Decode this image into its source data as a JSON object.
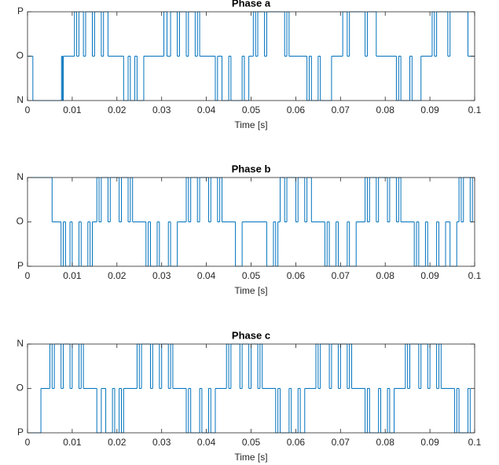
{
  "chart_data": [
    {
      "type": "line",
      "title": "Phase a",
      "xlabel": "Time [s]",
      "color": "#0072bd",
      "xlim": [
        0,
        0.1
      ],
      "xticks": [
        0,
        0.01,
        0.02,
        0.03,
        0.04,
        0.05,
        0.06,
        0.07,
        0.08,
        0.09,
        0.1
      ],
      "ylim": [
        -1,
        1
      ],
      "yticks": [
        {
          "value": -1,
          "label": "N"
        },
        {
          "value": 0,
          "label": "O"
        },
        {
          "value": 1,
          "label": "P"
        }
      ],
      "x": [
        0,
        0.0012,
        0.0076,
        0.0078,
        0.008,
        0.0105,
        0.011,
        0.0115,
        0.0125,
        0.013,
        0.0145,
        0.015,
        0.0165,
        0.017,
        0.018,
        0.0215,
        0.0225,
        0.023,
        0.024,
        0.0245,
        0.026,
        0.0305,
        0.0312,
        0.032,
        0.0335,
        0.034,
        0.0355,
        0.036,
        0.0375,
        0.038,
        0.0385,
        0.042,
        0.0425,
        0.0435,
        0.045,
        0.0455,
        0.048,
        0.0485,
        0.0495,
        0.0505,
        0.051,
        0.0515,
        0.053,
        0.0535,
        0.0575,
        0.058,
        0.0585,
        0.0625,
        0.063,
        0.0635,
        0.065,
        0.0655,
        0.068,
        0.0705,
        0.0715,
        0.072,
        0.0755,
        0.076,
        0.078,
        0.0825,
        0.083,
        0.0835,
        0.0855,
        0.086,
        0.088,
        0.0905,
        0.091,
        0.0915,
        0.094,
        0.0945,
        0.0985,
        0.1
      ],
      "values": [
        0,
        -1,
        0,
        -1,
        0,
        1,
        0,
        1,
        0,
        1,
        0,
        1,
        0,
        1,
        0,
        -1,
        0,
        -1,
        0,
        -1,
        0,
        1,
        0,
        1,
        0,
        1,
        0,
        1,
        0,
        1,
        0,
        -1,
        0,
        -1,
        0,
        -1,
        0,
        -1,
        0,
        1,
        0,
        1,
        0,
        1,
        0,
        1,
        0,
        -1,
        0,
        -1,
        0,
        -1,
        0,
        1,
        0,
        1,
        0,
        1,
        0,
        -1,
        0,
        -1,
        0,
        -1,
        0,
        1,
        0,
        1,
        0,
        1,
        0,
        0
      ]
    },
    {
      "type": "line",
      "title": "Phase b",
      "xlabel": "Time [s]",
      "color": "#0072bd",
      "xlim": [
        0,
        0.1
      ],
      "xticks": [
        0,
        0.01,
        0.02,
        0.03,
        0.04,
        0.05,
        0.06,
        0.07,
        0.08,
        0.09,
        0.1
      ],
      "ylim": [
        1,
        -1
      ],
      "yticks": [
        {
          "value": 1,
          "label": "P"
        },
        {
          "value": 0,
          "label": "O"
        },
        {
          "value": -1,
          "label": "N"
        }
      ],
      "x": [
        0,
        0.0055,
        0.0075,
        0.008,
        0.0085,
        0.0095,
        0.01,
        0.0115,
        0.012,
        0.0135,
        0.014,
        0.0145,
        0.0155,
        0.016,
        0.0165,
        0.018,
        0.0185,
        0.0205,
        0.021,
        0.0225,
        0.023,
        0.0235,
        0.0265,
        0.027,
        0.0275,
        0.029,
        0.0295,
        0.0315,
        0.032,
        0.0335,
        0.0355,
        0.036,
        0.0365,
        0.038,
        0.0385,
        0.0405,
        0.041,
        0.0425,
        0.043,
        0.0435,
        0.0465,
        0.048,
        0.0535,
        0.055,
        0.0555,
        0.056,
        0.0565,
        0.0575,
        0.058,
        0.06,
        0.0605,
        0.062,
        0.0625,
        0.0635,
        0.0665,
        0.067,
        0.0675,
        0.069,
        0.0695,
        0.0715,
        0.072,
        0.0735,
        0.0755,
        0.076,
        0.0765,
        0.078,
        0.0785,
        0.0805,
        0.081,
        0.0825,
        0.083,
        0.0835,
        0.0865,
        0.087,
        0.0875,
        0.089,
        0.0895,
        0.0915,
        0.092,
        0.0935,
        0.0945,
        0.096,
        0.0965,
        0.097,
        0.0975,
        0.099,
        0.0995,
        0.1
      ],
      "values": [
        -1,
        0,
        1,
        0,
        1,
        0,
        1,
        0,
        1,
        0,
        1,
        0,
        -1,
        0,
        -1,
        0,
        -1,
        0,
        -1,
        0,
        -1,
        0,
        1,
        0,
        1,
        0,
        1,
        0,
        1,
        0,
        -1,
        0,
        -1,
        0,
        -1,
        0,
        -1,
        0,
        -1,
        0,
        1,
        0,
        1,
        0,
        1,
        0,
        -1,
        0,
        -1,
        0,
        -1,
        0,
        -1,
        0,
        1,
        0,
        1,
        0,
        1,
        0,
        1,
        0,
        -1,
        0,
        -1,
        0,
        -1,
        0,
        -1,
        0,
        -1,
        0,
        1,
        0,
        1,
        0,
        1,
        0,
        1,
        0,
        1,
        0,
        -1,
        0,
        -1,
        0,
        -1,
        -1
      ]
    },
    {
      "type": "line",
      "title": "Phase c",
      "xlabel": "Time [s]",
      "color": "#0072bd",
      "xlim": [
        0,
        0.1
      ],
      "xticks": [
        0,
        0.01,
        0.02,
        0.03,
        0.04,
        0.05,
        0.06,
        0.07,
        0.08,
        0.09,
        0.1
      ],
      "ylim": [
        1,
        -1
      ],
      "yticks": [
        {
          "value": 1,
          "label": "P"
        },
        {
          "value": 0,
          "label": "O"
        },
        {
          "value": -1,
          "label": "N"
        }
      ],
      "x": [
        0,
        0.003,
        0.005,
        0.0055,
        0.006,
        0.0075,
        0.008,
        0.0095,
        0.01,
        0.0115,
        0.012,
        0.0125,
        0.0155,
        0.0165,
        0.0175,
        0.019,
        0.0195,
        0.0205,
        0.021,
        0.0215,
        0.0245,
        0.025,
        0.0255,
        0.0275,
        0.028,
        0.0295,
        0.03,
        0.0315,
        0.032,
        0.0325,
        0.0355,
        0.036,
        0.0365,
        0.0385,
        0.039,
        0.0405,
        0.041,
        0.042,
        0.0445,
        0.045,
        0.0455,
        0.0475,
        0.048,
        0.0495,
        0.05,
        0.0515,
        0.052,
        0.0525,
        0.0555,
        0.056,
        0.0565,
        0.0585,
        0.059,
        0.0605,
        0.061,
        0.062,
        0.0645,
        0.065,
        0.0655,
        0.0675,
        0.068,
        0.0695,
        0.07,
        0.0715,
        0.072,
        0.0725,
        0.0755,
        0.076,
        0.0765,
        0.0785,
        0.079,
        0.0805,
        0.081,
        0.082,
        0.0845,
        0.085,
        0.0855,
        0.0875,
        0.088,
        0.0895,
        0.09,
        0.0915,
        0.092,
        0.0925,
        0.0955,
        0.096,
        0.0965,
        0.0985,
        0.099,
        0.1
      ],
      "values": [
        1,
        0,
        -1,
        0,
        -1,
        0,
        -1,
        0,
        -1,
        0,
        -1,
        0,
        1,
        0,
        1,
        0,
        1,
        0,
        1,
        0,
        -1,
        0,
        -1,
        0,
        -1,
        0,
        -1,
        0,
        -1,
        0,
        1,
        0,
        1,
        0,
        1,
        0,
        1,
        0,
        -1,
        0,
        -1,
        0,
        -1,
        0,
        -1,
        0,
        -1,
        0,
        1,
        0,
        1,
        0,
        1,
        0,
        1,
        0,
        -1,
        0,
        -1,
        0,
        -1,
        0,
        -1,
        0,
        -1,
        0,
        1,
        0,
        1,
        0,
        1,
        0,
        1,
        0,
        -1,
        0,
        -1,
        0,
        -1,
        0,
        -1,
        0,
        -1,
        0,
        1,
        0,
        1,
        0,
        1,
        1
      ]
    }
  ]
}
